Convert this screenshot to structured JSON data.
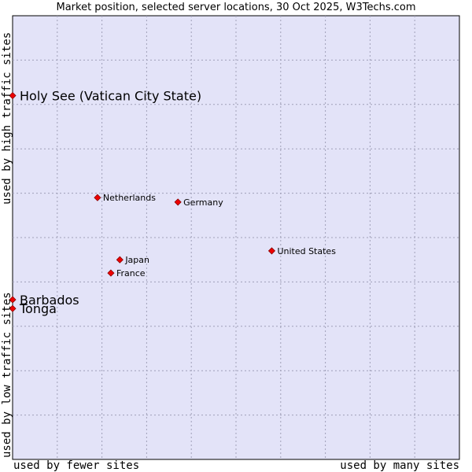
{
  "chart_data": {
    "type": "scatter",
    "title": "Market position, selected server locations, 30 Oct 2025, W3Techs.com",
    "xlabel_low": "used by fewer sites",
    "xlabel_high": "used by many sites",
    "ylabel_low": "used by low traffic sites",
    "ylabel_high": "used by high traffic sites",
    "xlim": [
      0,
      100
    ],
    "ylim": [
      0,
      100
    ],
    "grid": true,
    "points": [
      {
        "label": "Holy See (Vatican City State)",
        "x": 0,
        "y": 82,
        "highlight": true
      },
      {
        "label": "Netherlands",
        "x": 19,
        "y": 59,
        "highlight": false
      },
      {
        "label": "Germany",
        "x": 37,
        "y": 58,
        "highlight": false
      },
      {
        "label": "United States",
        "x": 58,
        "y": 47,
        "highlight": false
      },
      {
        "label": "Japan",
        "x": 24,
        "y": 45,
        "highlight": false
      },
      {
        "label": "France",
        "x": 22,
        "y": 42,
        "highlight": false
      },
      {
        "label": "Barbados",
        "x": 0,
        "y": 36,
        "highlight": true
      },
      {
        "label": "Tonga",
        "x": 0,
        "y": 34,
        "highlight": true
      }
    ]
  },
  "colors": {
    "plot_bg": "#e3e3f8",
    "grid": "#a0a0b8",
    "point_fill": "#ee0000",
    "point_stroke": "#880000"
  }
}
